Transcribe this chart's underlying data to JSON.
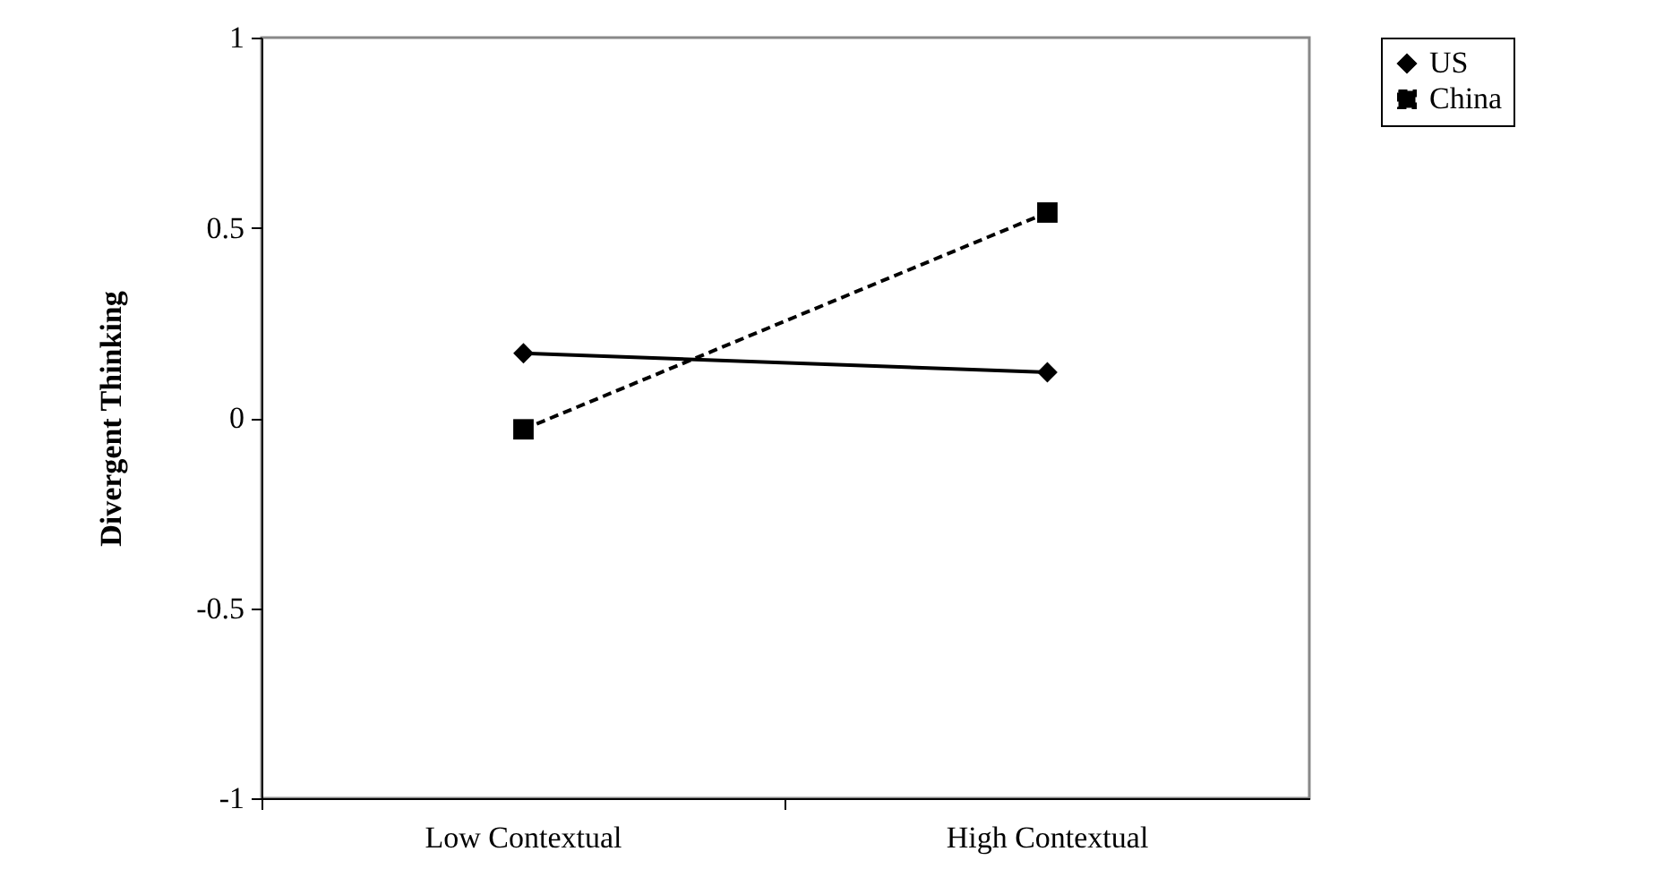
{
  "chart_data": {
    "type": "line",
    "ylabel": "Divergent Thinking",
    "categories": [
      "Low Contextual",
      "High Contextual"
    ],
    "series": [
      {
        "name": "US",
        "color": "#000000",
        "values": [
          0.17,
          0.12
        ],
        "marker": "diamond",
        "line_style": "solid"
      },
      {
        "name": "China",
        "color": "#000000",
        "values": [
          -0.03,
          0.54
        ],
        "marker": "square",
        "line_style": "dashed"
      }
    ],
    "ylim": [
      -1,
      1
    ],
    "yticks": [
      -1,
      -0.5,
      0,
      0.5,
      1
    ],
    "grid": false,
    "legend": "right"
  }
}
